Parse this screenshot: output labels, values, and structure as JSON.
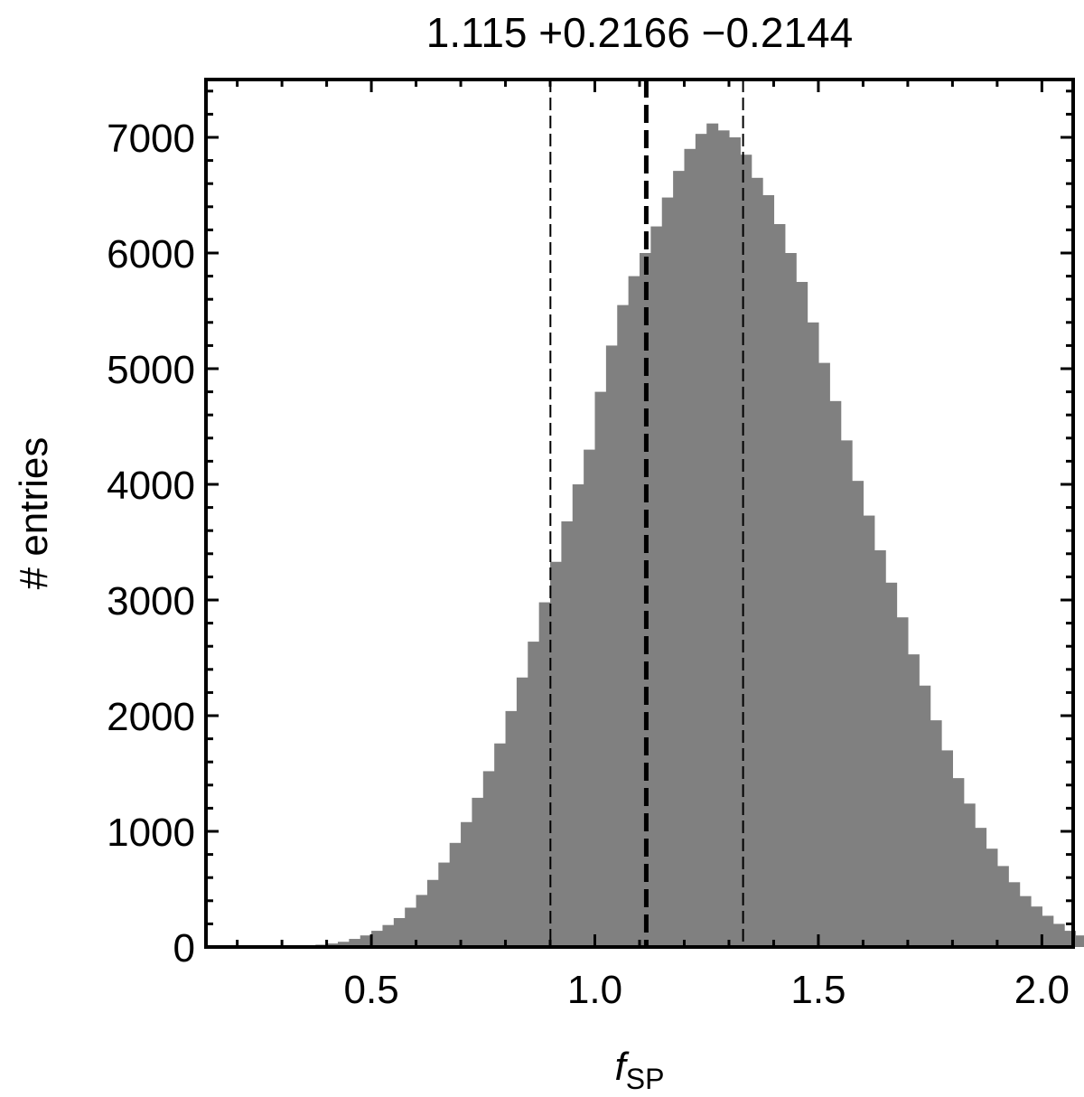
{
  "chart_data": {
    "type": "bar",
    "title": "1.115 +0.2166 −0.2144",
    "xlabel": "f",
    "xlabel_subscript": "SP",
    "ylabel": "# entries",
    "xlim": [
      0.13,
      2.07
    ],
    "ylim": [
      0,
      7500
    ],
    "x_ticks": [
      {
        "value": 0.5,
        "label": "0.5"
      },
      {
        "value": 1.0,
        "label": "1.0"
      },
      {
        "value": 1.5,
        "label": "1.5"
      },
      {
        "value": 2.0,
        "label": "2.0"
      }
    ],
    "y_ticks": [
      {
        "value": 0,
        "label": "0"
      },
      {
        "value": 1000,
        "label": "1000"
      },
      {
        "value": 2000,
        "label": "2000"
      },
      {
        "value": 3000,
        "label": "3000"
      },
      {
        "value": 4000,
        "label": "4000"
      },
      {
        "value": 5000,
        "label": "5000"
      },
      {
        "value": 6000,
        "label": "6000"
      },
      {
        "value": 7000,
        "label": "7000"
      }
    ],
    "bin_width": 0.025,
    "bin_start": 0.3,
    "values": [
      5,
      8,
      12,
      20,
      30,
      45,
      70,
      100,
      140,
      190,
      250,
      340,
      450,
      580,
      730,
      900,
      1080,
      1290,
      1520,
      1760,
      2040,
      2330,
      2640,
      2980,
      3330,
      3680,
      4000,
      4300,
      4800,
      5200,
      5550,
      5800,
      6000,
      6230,
      6480,
      6710,
      6900,
      7030,
      7120,
      7060,
      7000,
      6850,
      6650,
      6500,
      6250,
      6000,
      5750,
      5400,
      5050,
      4720,
      4380,
      4030,
      3730,
      3430,
      3150,
      2850,
      2530,
      2260,
      1960,
      1700,
      1460,
      1240,
      1030,
      850,
      700,
      560,
      440,
      350,
      270,
      200,
      140,
      100,
      70,
      45,
      28,
      17,
      10,
      6,
      3,
      2,
      1
    ],
    "median_line": 1.115,
    "interval_lines": [
      0.9006,
      1.3316
    ],
    "bar_color": "#808080",
    "grid": false,
    "legend": false
  }
}
